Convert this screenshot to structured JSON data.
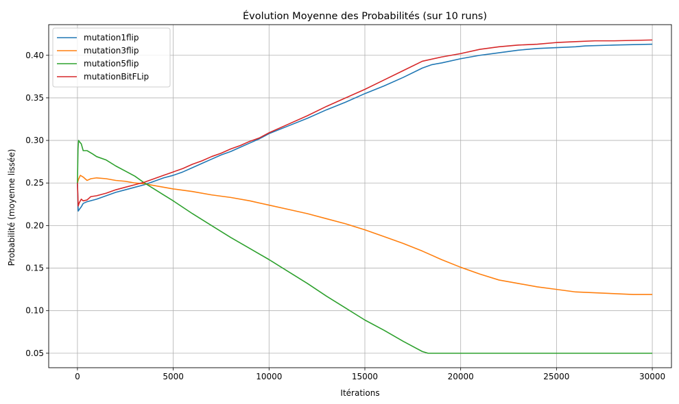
{
  "chart_data": {
    "type": "line",
    "title": "Évolution Moyenne des Probabilités (sur 10 runs)",
    "xlabel": "Itérations",
    "ylabel": "Probabilité (moyenne lissée)",
    "xlim": [
      -1500,
      31000
    ],
    "ylim": [
      0.033,
      0.436
    ],
    "xticks": [
      0,
      5000,
      10000,
      15000,
      20000,
      25000,
      30000
    ],
    "xtick_labels": [
      "0",
      "5000",
      "10000",
      "15000",
      "20000",
      "25000",
      "30000"
    ],
    "yticks": [
      0.05,
      0.1,
      0.15,
      0.2,
      0.25,
      0.3,
      0.35,
      0.4
    ],
    "ytick_labels": [
      "0.05",
      "0.10",
      "0.15",
      "0.20",
      "0.25",
      "0.30",
      "0.35",
      "0.40"
    ],
    "grid": true,
    "legend_position": "top-left",
    "series": [
      {
        "name": "mutation1flip",
        "color": "#1f77b4",
        "points": [
          [
            0,
            0.25
          ],
          [
            40,
            0.217
          ],
          [
            100,
            0.219
          ],
          [
            200,
            0.222
          ],
          [
            300,
            0.226
          ],
          [
            500,
            0.228
          ],
          [
            1000,
            0.231
          ],
          [
            1500,
            0.235
          ],
          [
            2000,
            0.239
          ],
          [
            2500,
            0.242
          ],
          [
            3000,
            0.245
          ],
          [
            3500,
            0.248
          ],
          [
            4000,
            0.252
          ],
          [
            4500,
            0.256
          ],
          [
            5000,
            0.259
          ],
          [
            5500,
            0.263
          ],
          [
            6000,
            0.268
          ],
          [
            6500,
            0.273
          ],
          [
            7000,
            0.278
          ],
          [
            7500,
            0.283
          ],
          [
            8000,
            0.287
          ],
          [
            8500,
            0.292
          ],
          [
            9000,
            0.297
          ],
          [
            9500,
            0.302
          ],
          [
            10000,
            0.308
          ],
          [
            11000,
            0.317
          ],
          [
            12000,
            0.326
          ],
          [
            13000,
            0.336
          ],
          [
            14000,
            0.345
          ],
          [
            15000,
            0.355
          ],
          [
            16000,
            0.364
          ],
          [
            17000,
            0.374
          ],
          [
            18000,
            0.385
          ],
          [
            18500,
            0.389
          ],
          [
            19000,
            0.391
          ],
          [
            20000,
            0.396
          ],
          [
            21000,
            0.4
          ],
          [
            22000,
            0.403
          ],
          [
            23000,
            0.406
          ],
          [
            24000,
            0.408
          ],
          [
            25000,
            0.409
          ],
          [
            26000,
            0.41
          ],
          [
            26500,
            0.411
          ],
          [
            28000,
            0.412
          ],
          [
            30000,
            0.413
          ]
        ]
      },
      {
        "name": "mutation3flip",
        "color": "#ff7f0e",
        "points": [
          [
            0,
            0.25
          ],
          [
            50,
            0.254
          ],
          [
            150,
            0.259
          ],
          [
            300,
            0.257
          ],
          [
            500,
            0.253
          ],
          [
            700,
            0.255
          ],
          [
            1000,
            0.256
          ],
          [
            1500,
            0.255
          ],
          [
            2000,
            0.253
          ],
          [
            2500,
            0.252
          ],
          [
            3000,
            0.25
          ],
          [
            3500,
            0.249
          ],
          [
            4000,
            0.247
          ],
          [
            5000,
            0.243
          ],
          [
            6000,
            0.24
          ],
          [
            7000,
            0.236
          ],
          [
            8000,
            0.233
          ],
          [
            9000,
            0.229
          ],
          [
            10000,
            0.224
          ],
          [
            11000,
            0.219
          ],
          [
            12000,
            0.214
          ],
          [
            13000,
            0.208
          ],
          [
            14000,
            0.202
          ],
          [
            15000,
            0.195
          ],
          [
            16000,
            0.187
          ],
          [
            17000,
            0.179
          ],
          [
            18000,
            0.17
          ],
          [
            19000,
            0.16
          ],
          [
            20000,
            0.151
          ],
          [
            21000,
            0.143
          ],
          [
            22000,
            0.136
          ],
          [
            23000,
            0.132
          ],
          [
            24000,
            0.128
          ],
          [
            25000,
            0.125
          ],
          [
            26000,
            0.122
          ],
          [
            27000,
            0.121
          ],
          [
            28000,
            0.12
          ],
          [
            29000,
            0.119
          ],
          [
            30000,
            0.119
          ]
        ]
      },
      {
        "name": "mutation5flip",
        "color": "#2ca02c",
        "points": [
          [
            0,
            0.25
          ],
          [
            30,
            0.29
          ],
          [
            60,
            0.3
          ],
          [
            120,
            0.298
          ],
          [
            200,
            0.296
          ],
          [
            300,
            0.288
          ],
          [
            500,
            0.288
          ],
          [
            800,
            0.284
          ],
          [
            1000,
            0.281
          ],
          [
            1500,
            0.277
          ],
          [
            2000,
            0.27
          ],
          [
            2500,
            0.264
          ],
          [
            3000,
            0.258
          ],
          [
            3500,
            0.25
          ],
          [
            4000,
            0.243
          ],
          [
            4500,
            0.236
          ],
          [
            5000,
            0.229
          ],
          [
            6000,
            0.214
          ],
          [
            7000,
            0.2
          ],
          [
            8000,
            0.186
          ],
          [
            9000,
            0.173
          ],
          [
            10000,
            0.16
          ],
          [
            11000,
            0.146
          ],
          [
            12000,
            0.132
          ],
          [
            13000,
            0.117
          ],
          [
            14000,
            0.103
          ],
          [
            15000,
            0.089
          ],
          [
            16000,
            0.077
          ],
          [
            17000,
            0.064
          ],
          [
            18000,
            0.052
          ],
          [
            18300,
            0.05
          ],
          [
            30000,
            0.05
          ]
        ]
      },
      {
        "name": "mutationBitFLip",
        "color": "#d62728",
        "points": [
          [
            0,
            0.25
          ],
          [
            40,
            0.223
          ],
          [
            100,
            0.227
          ],
          [
            200,
            0.231
          ],
          [
            300,
            0.229
          ],
          [
            500,
            0.23
          ],
          [
            700,
            0.234
          ],
          [
            1000,
            0.235
          ],
          [
            1500,
            0.238
          ],
          [
            2000,
            0.242
          ],
          [
            2500,
            0.245
          ],
          [
            3000,
            0.248
          ],
          [
            3500,
            0.251
          ],
          [
            4000,
            0.255
          ],
          [
            4500,
            0.259
          ],
          [
            5000,
            0.263
          ],
          [
            5500,
            0.267
          ],
          [
            6000,
            0.272
          ],
          [
            6500,
            0.276
          ],
          [
            7000,
            0.281
          ],
          [
            7500,
            0.285
          ],
          [
            8000,
            0.29
          ],
          [
            8500,
            0.294
          ],
          [
            9000,
            0.299
          ],
          [
            9500,
            0.303
          ],
          [
            10000,
            0.309
          ],
          [
            11000,
            0.319
          ],
          [
            12000,
            0.329
          ],
          [
            13000,
            0.34
          ],
          [
            14000,
            0.35
          ],
          [
            15000,
            0.36
          ],
          [
            16000,
            0.371
          ],
          [
            17000,
            0.382
          ],
          [
            18000,
            0.393
          ],
          [
            19000,
            0.398
          ],
          [
            20000,
            0.402
          ],
          [
            21000,
            0.407
          ],
          [
            22000,
            0.41
          ],
          [
            23000,
            0.412
          ],
          [
            24000,
            0.413
          ],
          [
            25000,
            0.415
          ],
          [
            26000,
            0.416
          ],
          [
            27000,
            0.417
          ],
          [
            28000,
            0.417
          ],
          [
            30000,
            0.418
          ]
        ]
      }
    ]
  }
}
